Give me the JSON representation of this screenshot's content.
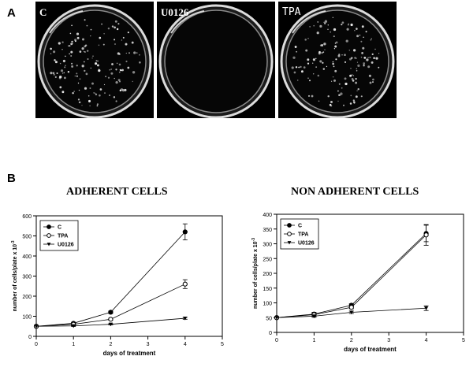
{
  "figure": {
    "panel_a_label": "A",
    "panel_b_label": "B"
  },
  "dishes": [
    {
      "label": "C",
      "colonies": "dense",
      "label_font": "serif"
    },
    {
      "label": "U0126",
      "colonies": "none",
      "label_font": "serif"
    },
    {
      "label": "TPA",
      "colonies": "dense",
      "label_font": "mono"
    }
  ],
  "chart_data": [
    {
      "type": "line",
      "title": "ADHERENT CELLS",
      "xlabel": "days of treatment",
      "ylabel": "number of cells/plate x 10",
      "ylabel_superscript": "-3",
      "x": [
        0,
        1,
        2,
        4
      ],
      "xlim": [
        0,
        5
      ],
      "ylim": [
        0,
        600
      ],
      "xticks": [
        0,
        1,
        2,
        3,
        4,
        5
      ],
      "yticks": [
        0,
        100,
        200,
        300,
        400,
        500,
        600
      ],
      "legend_position": "top-left",
      "series": [
        {
          "name": "C",
          "marker": "filled-circle",
          "values": [
            50,
            65,
            120,
            520
          ],
          "errors": [
            0,
            5,
            6,
            40
          ]
        },
        {
          "name": "TPA",
          "marker": "open-circle",
          "values": [
            50,
            60,
            85,
            260
          ],
          "errors": [
            0,
            5,
            5,
            22
          ]
        },
        {
          "name": "U0126",
          "marker": "filled-triangle-down",
          "values": [
            50,
            52,
            60,
            90
          ],
          "errors": [
            0,
            3,
            3,
            5
          ]
        }
      ]
    },
    {
      "type": "line",
      "title": "NON ADHERENT CELLS",
      "xlabel": "days of treatment",
      "ylabel": "number of cells/plate x 10",
      "ylabel_superscript": "-3",
      "x": [
        0,
        1,
        2,
        4
      ],
      "xlim": [
        0,
        5
      ],
      "ylim": [
        0,
        400
      ],
      "xticks": [
        0,
        1,
        2,
        3,
        4,
        5
      ],
      "yticks": [
        0,
        50,
        100,
        150,
        200,
        250,
        300,
        350,
        400
      ],
      "legend_position": "top-left",
      "series": [
        {
          "name": "C",
          "marker": "filled-circle",
          "values": [
            50,
            62,
            92,
            335
          ],
          "errors": [
            0,
            6,
            5,
            28
          ]
        },
        {
          "name": "TPA",
          "marker": "open-circle",
          "values": [
            50,
            60,
            85,
            330
          ],
          "errors": [
            0,
            6,
            5,
            35
          ]
        },
        {
          "name": "U0126",
          "marker": "filled-triangle-down",
          "values": [
            50,
            55,
            68,
            82
          ],
          "errors": [
            0,
            4,
            4,
            8
          ]
        }
      ]
    }
  ]
}
